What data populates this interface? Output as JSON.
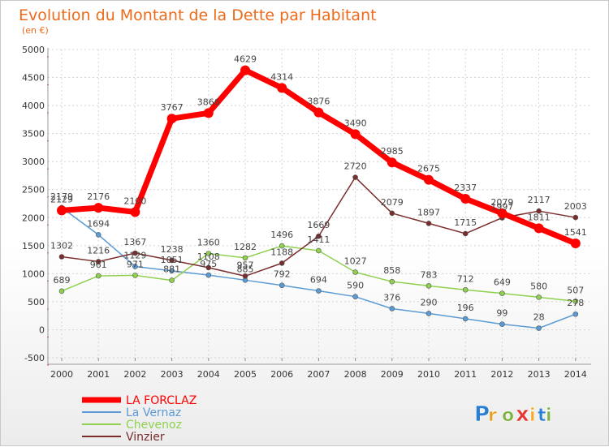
{
  "chart_data": {
    "type": "line",
    "title": "Evolution du Montant de la Dette par Habitant",
    "subtitle": "(en €)",
    "x": [
      "2000",
      "2001",
      "2002",
      "2003",
      "2004",
      "2005",
      "2006",
      "2007",
      "2008",
      "2009",
      "2010",
      "2011",
      "2012",
      "2013",
      "2014"
    ],
    "ylim": [
      -500,
      5000
    ],
    "yticks": [
      "-500",
      "0",
      "500",
      "1000",
      "1500",
      "2000",
      "2500",
      "3000",
      "3500",
      "4000",
      "4500",
      "5000"
    ],
    "grid": true,
    "legend_position": "bottom-left",
    "series": [
      {
        "name": "LA FORCLAZ",
        "color": "#ff0000",
        "values": [
          2129,
          2176,
          2100,
          3767,
          3866,
          4629,
          4314,
          3876,
          3490,
          2985,
          2675,
          2337,
          2079,
          1811,
          1541
        ],
        "labels": [
          "2129",
          "2176",
          "2100",
          "3767",
          "3866",
          "4629",
          "4314",
          "3876",
          "3490",
          "2985",
          "2675",
          "2337",
          "2079",
          "1811",
          "1541"
        ]
      },
      {
        "name": "La Vernaz",
        "color": "#5b9bd5",
        "values": [
          2179,
          1694,
          1129,
          1051,
          975,
          885,
          792,
          694,
          590,
          376,
          290,
          196,
          99,
          28,
          278
        ],
        "labels": [
          "2179",
          "1694",
          "1129",
          "1051",
          "975",
          "885",
          "792",
          "694",
          "590",
          "376",
          "290",
          "196",
          "99",
          "28",
          "278"
        ]
      },
      {
        "name": "Chevenoz",
        "color": "#8fd14f",
        "values": [
          689,
          961,
          971,
          881,
          1360,
          1282,
          1496,
          1411,
          1027,
          858,
          783,
          712,
          649,
          580,
          507
        ],
        "labels": [
          "689",
          "961",
          "971",
          "881",
          "1360",
          "1282",
          "1496",
          "1411",
          "1027",
          "858",
          "783",
          "712",
          "649",
          "580",
          "507"
        ]
      },
      {
        "name": "Vinzier",
        "color": "#7b2c2c",
        "values": [
          1302,
          1216,
          1367,
          1238,
          1108,
          957,
          1188,
          1669,
          2720,
          2079,
          1897,
          1715,
          1997,
          2117,
          2003
        ],
        "labels": [
          "1302",
          "1216",
          "1367",
          "1238",
          "1108",
          "957",
          "1188",
          "1669",
          "2720",
          "2079",
          "1897",
          "1715",
          "1997",
          "2117",
          "2003"
        ]
      }
    ]
  },
  "logo": {
    "letters": [
      "P",
      "r",
      "o",
      "x",
      "i",
      "t",
      "i"
    ],
    "colors": [
      "#2a7fd4",
      "#e8a020",
      "#7cb342",
      "#e53935",
      "#f9a825",
      "#2a7fd4",
      "#7cb342"
    ]
  }
}
